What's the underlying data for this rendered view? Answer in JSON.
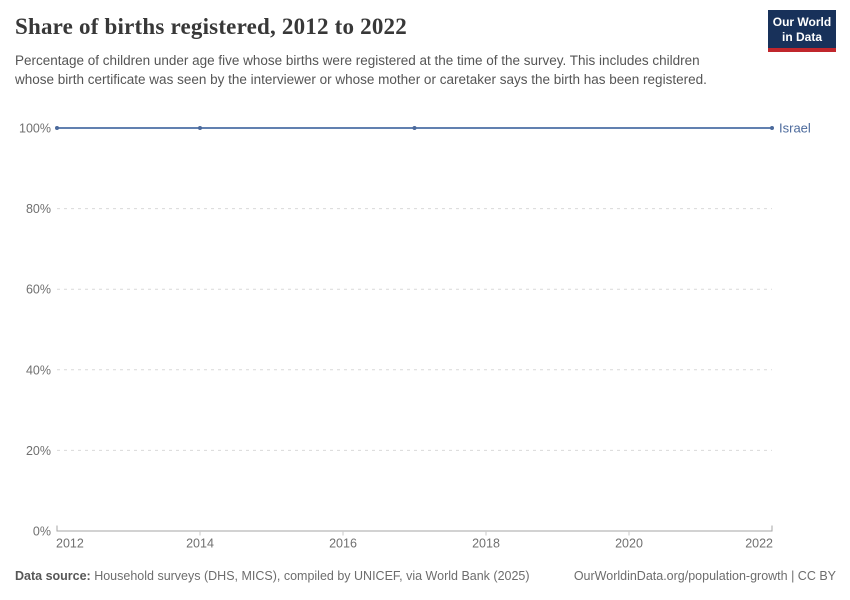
{
  "header": {
    "title": "Share of births registered, 2012 to 2022",
    "subtitle": "Percentage of children under age five whose births were registered at the time of the survey. This includes children whose birth certificate was seen by the interviewer or whose mother or caretaker says the birth has been registered.",
    "logo": {
      "line1": "Our World",
      "line2": "in Data",
      "bg_color": "#18315a",
      "bar_color": "#c0262c"
    }
  },
  "chart_data": {
    "type": "line",
    "title": "Share of births registered, 2012 to 2022",
    "xlabel": "",
    "ylabel": "",
    "xlim": [
      2012,
      2022
    ],
    "ylim": [
      0,
      100
    ],
    "grid": "horizontal-dashed",
    "legend_position": "end-of-line-label",
    "x_ticks": [
      {
        "value": 2012,
        "label": "2012"
      },
      {
        "value": 2014,
        "label": "2014"
      },
      {
        "value": 2016,
        "label": "2016"
      },
      {
        "value": 2018,
        "label": "2018"
      },
      {
        "value": 2020,
        "label": "2020"
      },
      {
        "value": 2022,
        "label": "2022"
      }
    ],
    "y_ticks": [
      {
        "value": 0,
        "label": "0%"
      },
      {
        "value": 20,
        "label": "20%"
      },
      {
        "value": 40,
        "label": "40%"
      },
      {
        "value": 60,
        "label": "60%"
      },
      {
        "value": 80,
        "label": "80%"
      },
      {
        "value": 100,
        "label": "100%"
      }
    ],
    "series": [
      {
        "name": "Israel",
        "color": "#4c6a9c",
        "line_color": "#6180b0",
        "points": [
          {
            "x": 2012,
            "y": 100
          },
          {
            "x": 2014,
            "y": 100
          },
          {
            "x": 2017,
            "y": 100
          },
          {
            "x": 2022,
            "y": 100
          }
        ]
      }
    ],
    "colors": {
      "gridline": "#d9d9d9",
      "axis_line": "#a6a6a6",
      "tick": "#c9c9c9",
      "tick_label": "#707070"
    }
  },
  "footer": {
    "datasource_label": "Data source:",
    "datasource_text": " Household surveys (DHS, MICS), compiled by UNICEF, via World Bank (2025)",
    "attribution": "OurWorldinData.org/population-growth | CC BY"
  }
}
